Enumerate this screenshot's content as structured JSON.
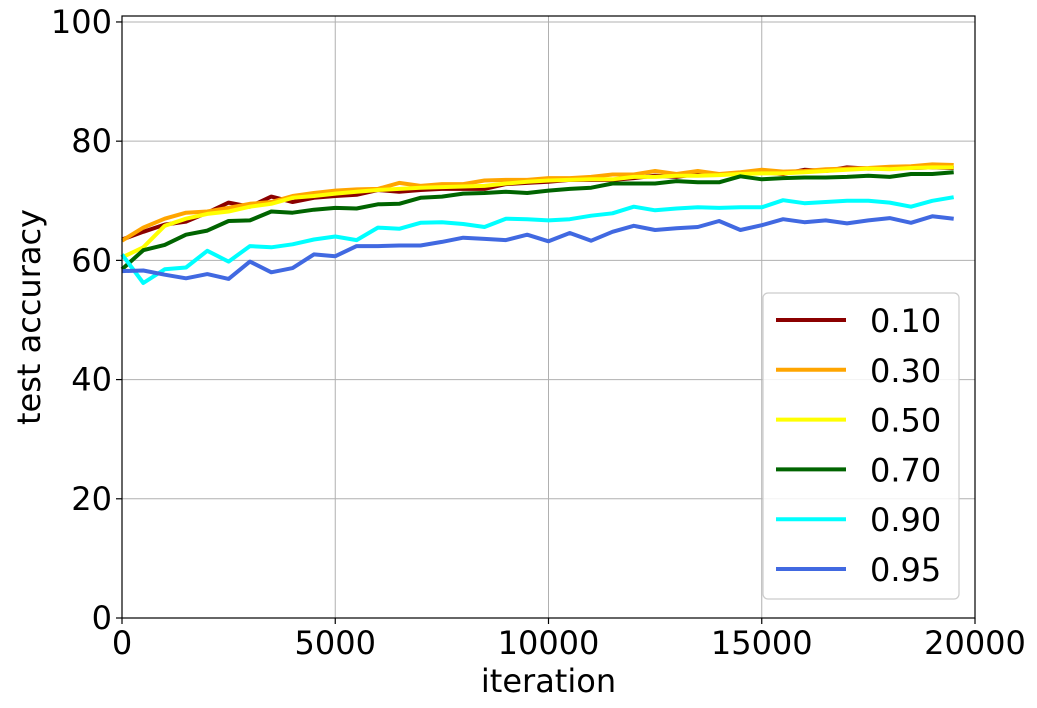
{
  "chart_data": {
    "type": "line",
    "xlabel": "iteration",
    "ylabel": "test accuracy",
    "xlim": [
      0,
      20000
    ],
    "ylim": [
      0,
      101
    ],
    "xticks": [
      0,
      5000,
      10000,
      15000,
      20000
    ],
    "yticks": [
      0,
      20,
      40,
      60,
      80,
      100
    ],
    "grid": true,
    "legend_position": "lower-right",
    "x": [
      0,
      500,
      1000,
      1500,
      2000,
      2500,
      3000,
      3500,
      4000,
      4500,
      5000,
      5500,
      6000,
      6500,
      7000,
      7500,
      8000,
      8500,
      9000,
      9500,
      10000,
      10500,
      11000,
      11500,
      12000,
      12500,
      13000,
      13500,
      14000,
      14500,
      15000,
      15500,
      16000,
      16500,
      17000,
      17500,
      18000,
      18500,
      19000,
      19500
    ],
    "series": [
      {
        "name": "0.10",
        "color": "#8b0000",
        "values": [
          63.5,
          64.8,
          66.0,
          66.5,
          68.0,
          69.7,
          69.0,
          70.7,
          69.8,
          70.5,
          70.8,
          71.0,
          71.8,
          71.5,
          71.8,
          72.0,
          72.0,
          72.0,
          72.8,
          73.0,
          73.2,
          73.5,
          73.5,
          73.5,
          73.8,
          74.2,
          74.0,
          74.5,
          74.5,
          74.5,
          74.8,
          74.5,
          75.2,
          75.0,
          75.6,
          75.4,
          75.5,
          75.5,
          75.6,
          75.5
        ]
      },
      {
        "name": "0.30",
        "color": "#ffa500",
        "values": [
          63.3,
          65.5,
          67.0,
          68.0,
          68.2,
          68.8,
          69.5,
          69.8,
          70.8,
          71.3,
          71.7,
          71.9,
          72.0,
          73.0,
          72.5,
          72.8,
          72.8,
          73.4,
          73.5,
          73.5,
          73.8,
          73.8,
          74.0,
          74.4,
          74.4,
          75.0,
          74.5,
          75.0,
          74.5,
          74.8,
          75.2,
          74.9,
          75.0,
          75.3,
          75.4,
          75.5,
          75.7,
          75.8,
          76.1,
          76.0
        ]
      },
      {
        "name": "0.50",
        "color": "#ffff00",
        "values": [
          60.5,
          62.2,
          65.8,
          67.0,
          67.8,
          68.2,
          69.0,
          69.5,
          70.5,
          70.8,
          71.2,
          71.5,
          71.8,
          72.0,
          72.2,
          72.3,
          72.4,
          72.5,
          72.9,
          73.2,
          73.4,
          73.5,
          73.6,
          73.6,
          74.0,
          74.0,
          74.2,
          74.2,
          74.3,
          74.5,
          74.6,
          74.6,
          74.8,
          75.0,
          75.2,
          75.4,
          75.3,
          75.5,
          75.6,
          75.6
        ]
      },
      {
        "name": "0.70",
        "color": "#006400",
        "values": [
          58.5,
          61.7,
          62.6,
          64.3,
          65.0,
          66.6,
          66.7,
          68.2,
          68.0,
          68.5,
          68.8,
          68.7,
          69.4,
          69.5,
          70.5,
          70.7,
          71.2,
          71.3,
          71.5,
          71.3,
          71.7,
          72.0,
          72.2,
          72.9,
          72.9,
          72.9,
          73.3,
          73.1,
          73.1,
          74.1,
          73.6,
          73.8,
          73.9,
          73.9,
          74.0,
          74.2,
          74.0,
          74.5,
          74.5,
          74.8
        ]
      },
      {
        "name": "0.90",
        "color": "#00ffff",
        "values": [
          61.0,
          56.2,
          58.5,
          58.8,
          61.6,
          59.8,
          62.4,
          62.2,
          62.7,
          63.5,
          64.0,
          63.4,
          65.5,
          65.3,
          66.3,
          66.4,
          66.1,
          65.6,
          67.0,
          66.9,
          66.7,
          66.9,
          67.5,
          67.9,
          69.0,
          68.4,
          68.7,
          68.9,
          68.8,
          68.9,
          68.9,
          70.1,
          69.6,
          69.8,
          70.0,
          70.0,
          69.7,
          69.0,
          70.0,
          70.6
        ]
      },
      {
        "name": "0.95",
        "color": "#4169e1",
        "values": [
          58.2,
          58.3,
          57.6,
          57.0,
          57.7,
          56.9,
          59.8,
          58.0,
          58.7,
          61.0,
          60.7,
          62.4,
          62.4,
          62.5,
          62.5,
          63.1,
          63.8,
          63.6,
          63.4,
          64.3,
          63.2,
          64.6,
          63.3,
          64.8,
          65.8,
          65.1,
          65.4,
          65.6,
          66.6,
          65.1,
          65.9,
          66.9,
          66.4,
          66.7,
          66.2,
          66.7,
          67.1,
          66.3,
          67.4,
          67.0
        ]
      }
    ]
  }
}
